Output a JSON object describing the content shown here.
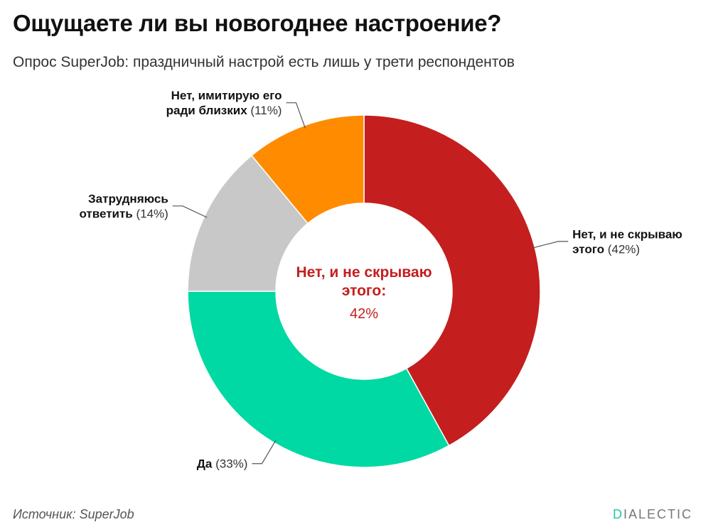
{
  "header": {
    "title": "Ощущаете ли вы новогоднее настроение?",
    "subtitle": "Опрос SuperJob: праздничный настрой есть лишь у трети респондентов"
  },
  "chart_data": {
    "type": "pie",
    "variant": "donut",
    "title": "Ощущаете ли вы новогоднее настроение?",
    "subtitle": "Опрос SuperJob: праздничный настрой есть лишь у трети респондентов",
    "slices": [
      {
        "label_lines": [
          "Нет, и не скрываю",
          "этого"
        ],
        "value": 42,
        "value_text": "(42%)",
        "color": "#c41e1e"
      },
      {
        "label_lines": [
          "Да"
        ],
        "value": 33,
        "value_text": "(33%)",
        "color": "#00d9a3"
      },
      {
        "label_lines": [
          "Затрудняюсь",
          "ответить"
        ],
        "value": 14,
        "value_text": "(14%)",
        "color": "#c8c8c8"
      },
      {
        "label_lines": [
          "Нет, имитирую его",
          "ради близких"
        ],
        "value": 11,
        "value_text": "(11%)",
        "color": "#ff8c00"
      }
    ],
    "center_label": {
      "lines": [
        "Нет, и не скрываю",
        "этого:"
      ],
      "value_text": "42%",
      "color": "#c41e1e"
    }
  },
  "footer": {
    "source": "Источник: SuperJob",
    "brand_first": "D",
    "brand_rest": "IALECTIC",
    "brand_accent_color": "#1ec7a5"
  }
}
